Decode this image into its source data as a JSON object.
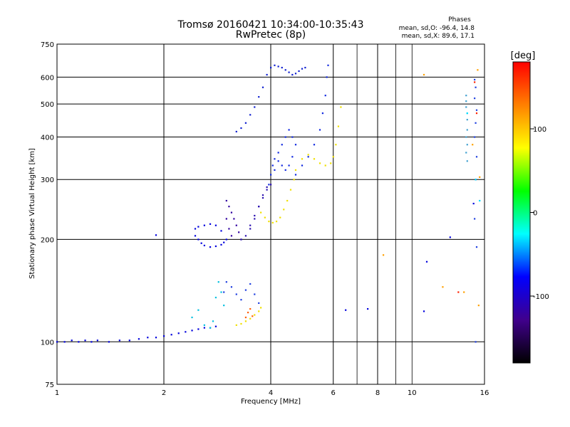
{
  "header": {
    "title_line1": "Tromsø 20160421 10:34:00-10:35:43",
    "title_line2": "RwPretec (8p)",
    "stats_title": "Phases",
    "stats_line_o": "mean, sd,O: -96.4, 14.8",
    "stats_line_x": "mean, sd,X:  89.6, 17.1"
  },
  "chart_data": {
    "type": "scatter",
    "xlabel": "Frequency [MHz]",
    "ylabel": "Stationary phase Virtual Height [km]",
    "x_scale": "log",
    "y_scale": "log",
    "xlim": [
      1,
      16
    ],
    "ylim": [
      75,
      750
    ],
    "grid": true,
    "x_tick_labels": [
      "1",
      "2",
      "4",
      "6",
      "8",
      "10",
      "16"
    ],
    "x_ticks": [
      1,
      2,
      4,
      6,
      8,
      10,
      16
    ],
    "x_major_grid": [
      1,
      2,
      4,
      6,
      8,
      16
    ],
    "x_minor_grid": [
      7,
      9,
      10
    ],
    "y_tick_labels": [
      "75",
      "100",
      "200",
      "300",
      "400",
      "500",
      "600",
      "750"
    ],
    "y_ticks": [
      75,
      100,
      200,
      300,
      400,
      500,
      600,
      750
    ],
    "colorbar": {
      "label": "[deg]",
      "range": [
        -180,
        180
      ],
      "tick_labels": [
        "100",
        "0",
        "-100"
      ],
      "ticks": [
        100,
        0,
        -100
      ],
      "colormap": [
        "#000000",
        "#40008c",
        "#0000ff",
        "#00ffff",
        "#00ff00",
        "#ffff00",
        "#ff8000",
        "#ff0000"
      ]
    },
    "series": [
      {
        "color": "#0000dd",
        "x": [
          1.0,
          1.05,
          1.1,
          1.15,
          1.2,
          1.25,
          1.3,
          1.4,
          1.5,
          1.6,
          1.7,
          1.8,
          1.9,
          2.0,
          2.1,
          2.2,
          2.3,
          2.4,
          2.5,
          2.6,
          2.7,
          2.8
        ],
        "y": [
          100,
          100,
          101,
          100,
          101,
          100,
          101,
          100,
          101,
          101,
          102,
          103,
          103,
          104,
          105,
          106,
          107,
          108,
          109,
          110,
          110,
          111
        ]
      },
      {
        "color": "#0000dd",
        "x": [
          2.45,
          2.5,
          2.55,
          2.6,
          2.7,
          2.8,
          2.9,
          2.95,
          3.0,
          2.9,
          2.8,
          2.7,
          2.6,
          2.5,
          2.45
        ],
        "y": [
          205,
          200,
          195,
          192,
          190,
          191,
          193,
          196,
          200,
          212,
          220,
          222,
          220,
          218,
          215
        ]
      },
      {
        "color": "#3000a0",
        "x": [
          3.0,
          3.05,
          3.1,
          3.15,
          3.2,
          3.25,
          3.3,
          3.1,
          3.05,
          3.0
        ],
        "y": [
          260,
          250,
          240,
          230,
          220,
          210,
          200,
          205,
          215,
          230
        ]
      },
      {
        "color": "#2a10b0",
        "x": [
          3.3,
          3.4,
          3.5,
          3.6,
          3.7,
          3.8,
          3.9,
          4.0,
          3.9,
          3.8,
          3.7,
          3.6,
          3.5
        ],
        "y": [
          200,
          205,
          215,
          230,
          250,
          270,
          285,
          290,
          280,
          265,
          250,
          235,
          220
        ]
      },
      {
        "color": "#1020d0",
        "x": [
          3.2,
          3.3,
          3.4,
          3.5,
          3.6,
          3.7,
          3.8,
          3.9
        ],
        "y": [
          415,
          425,
          440,
          465,
          490,
          525,
          560,
          610
        ]
      },
      {
        "color": "#1020d0",
        "x": [
          4.0,
          4.1,
          4.2,
          4.3,
          4.4,
          4.5,
          4.6,
          4.7,
          4.8,
          4.9,
          5.0
        ],
        "y": [
          640,
          650,
          645,
          640,
          630,
          620,
          610,
          615,
          625,
          635,
          640
        ]
      },
      {
        "color": "#1028e0",
        "x": [
          3.95,
          4.0,
          4.05,
          4.1,
          4.2,
          4.3,
          4.4,
          4.5,
          4.6,
          4.7,
          4.6,
          4.5,
          4.4,
          4.3,
          4.2,
          4.1
        ],
        "y": [
          290,
          310,
          330,
          345,
          360,
          380,
          400,
          420,
          400,
          380,
          350,
          330,
          320,
          330,
          340,
          320
        ]
      },
      {
        "color": "#1028e0",
        "x": [
          4.7,
          4.9,
          5.1,
          5.3,
          5.5,
          5.6,
          5.7,
          5.75,
          5.8
        ],
        "y": [
          310,
          330,
          350,
          380,
          420,
          470,
          530,
          600,
          650
        ]
      },
      {
        "color": "#f0e000",
        "x": [
          3.75,
          3.85,
          3.95,
          4.05,
          4.15,
          4.25,
          4.35,
          4.45,
          4.55,
          4.65
        ],
        "y": [
          240,
          232,
          226,
          224,
          226,
          232,
          245,
          260,
          280,
          300
        ]
      },
      {
        "color": "#f0e000",
        "x": [
          4.7,
          4.9,
          5.1,
          5.3,
          5.5,
          5.7,
          5.9,
          6.0,
          6.1,
          6.2,
          6.3
        ],
        "y": [
          320,
          345,
          355,
          345,
          335,
          330,
          335,
          350,
          380,
          430,
          490
        ]
      },
      {
        "color": "#f0e000",
        "x": [
          3.2,
          3.3,
          3.4,
          3.5,
          3.6,
          3.7,
          3.75
        ],
        "y": [
          112,
          113,
          115,
          117,
          120,
          123,
          126
        ]
      },
      {
        "color": "#00c0e0",
        "x": [
          2.4,
          2.5,
          2.6,
          2.7,
          2.75,
          2.8,
          2.85,
          2.9,
          2.95
        ],
        "y": [
          118,
          124,
          112,
          110,
          115,
          135,
          150,
          140,
          128
        ]
      },
      {
        "color": "#2040e0",
        "x": [
          2.95,
          3.0,
          3.1,
          3.2,
          3.3,
          3.4,
          3.5,
          3.6,
          3.7
        ],
        "y": [
          140,
          150,
          145,
          138,
          133,
          142,
          148,
          138,
          130
        ]
      },
      {
        "color": "#ff6000",
        "x": [
          3.4,
          3.45,
          3.5,
          3.55
        ],
        "y": [
          118,
          122,
          125,
          119
        ]
      },
      {
        "color": "#0000dd",
        "x": [
          1.9,
          6.5,
          7.5,
          10.8,
          11.0,
          12.8,
          14.9
        ],
        "y": [
          206,
          124,
          125,
          123,
          172,
          203,
          255
        ]
      },
      {
        "color": "#40a0d0",
        "x": [
          14.2,
          14.2,
          14.2,
          14.3,
          14.3,
          14.3,
          14.2,
          14.3,
          14.2,
          14.3
        ],
        "y": [
          530,
          510,
          490,
          470,
          450,
          420,
          400,
          380,
          360,
          340
        ]
      },
      {
        "color": "#2040e0",
        "x": [
          15.0,
          15.1,
          15.0,
          15.2,
          15.1,
          15.0,
          15.2,
          15.1,
          15.0,
          15.2,
          15.1
        ],
        "y": [
          590,
          560,
          520,
          480,
          440,
          400,
          350,
          300,
          230,
          190,
          100
        ]
      },
      {
        "color": "#ffa000",
        "x": [
          10.8,
          15.3,
          14.8,
          15.5,
          14.0,
          8.3,
          12.2,
          15.4
        ],
        "y": [
          610,
          630,
          380,
          305,
          140,
          180,
          145,
          128
        ]
      },
      {
        "color": "#ff2000",
        "x": [
          15.0,
          15.2,
          13.5
        ],
        "y": [
          580,
          470,
          140
        ]
      },
      {
        "color": "#00e0ff",
        "x": [
          15.1,
          14.3,
          15.5
        ],
        "y": [
          300,
          470,
          260
        ]
      }
    ]
  }
}
